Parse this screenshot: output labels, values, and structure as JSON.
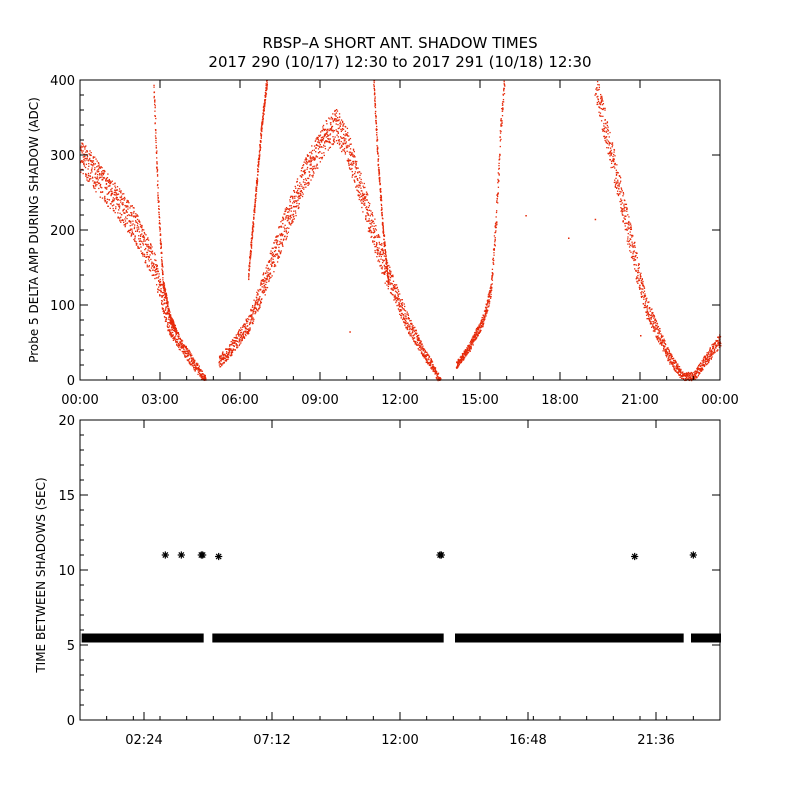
{
  "title_line1": "RBSP–A SHORT ANT. SHADOW TIMES",
  "title_line2": "2017 290 (10/17) 12:30 to 2017 291 (10/18) 12:30",
  "colors": {
    "trace": "#e62a0a",
    "marker": "#000000"
  },
  "chart_data": [
    {
      "type": "scatter",
      "name": "delta-amp",
      "ylabel": "Probe 5 DELTA AMP DURING SHADOW (ADC)",
      "xlabel": "",
      "xlim": [
        0,
        24
      ],
      "ylim": [
        0,
        400
      ],
      "grid": false,
      "xticks": [
        {
          "v": 0,
          "label": "00:00"
        },
        {
          "v": 3,
          "label": "03:00"
        },
        {
          "v": 6,
          "label": "06:00"
        },
        {
          "v": 9,
          "label": "09:00"
        },
        {
          "v": 12,
          "label": "12:00"
        },
        {
          "v": 15,
          "label": "15:00"
        },
        {
          "v": 18,
          "label": "18:00"
        },
        {
          "v": 21,
          "label": "21:00"
        },
        {
          "v": 24,
          "label": "00:00"
        }
      ],
      "yticks": [
        {
          "v": 0,
          "label": "0"
        },
        {
          "v": 100,
          "label": "100"
        },
        {
          "v": 200,
          "label": "200"
        },
        {
          "v": 300,
          "label": "300"
        },
        {
          "v": 400,
          "label": "400"
        }
      ],
      "trend": {
        "x": [
          0.0,
          1.0,
          2.0,
          2.8,
          3.3,
          3.9,
          4.5,
          4.7
        ],
        "y": [
          300,
          255,
          210,
          150,
          75,
          40,
          10,
          0
        ]
      },
      "spike_a": {
        "x": [
          2.75,
          2.9,
          3.1,
          3.35,
          3.6
        ],
        "y": [
          400,
          250,
          130,
          85,
          65
        ]
      },
      "branch_a": {
        "x": [
          5.2,
          5.6,
          6.3,
          6.9,
          7.6,
          8.5,
          9.2,
          9.6,
          10.0,
          10.6,
          11.4,
          12.3,
          13.0,
          13.5
        ],
        "y": [
          25,
          40,
          75,
          130,
          200,
          280,
          325,
          340,
          315,
          245,
          150,
          75,
          30,
          0
        ]
      },
      "spike_b": {
        "x": [
          6.3,
          6.55,
          6.8,
          7.0
        ],
        "y": [
          140,
          240,
          340,
          400
        ]
      },
      "spike_c": {
        "x": [
          11.0,
          11.15,
          11.35,
          11.55
        ],
        "y": [
          400,
          300,
          200,
          130
        ]
      },
      "branch_b": {
        "x": [
          14.1,
          14.6,
          15.1,
          15.4,
          15.6,
          15.75,
          15.9
        ],
        "y": [
          20,
          45,
          80,
          120,
          220,
          330,
          400
        ]
      },
      "branch_c": {
        "x": [
          19.3,
          19.8,
          20.3,
          20.8,
          21.2,
          21.7,
          22.1,
          22.6,
          23.0,
          23.5,
          24.0
        ],
        "y": [
          400,
          320,
          240,
          160,
          100,
          60,
          30,
          5,
          5,
          30,
          55
        ]
      },
      "outliers": {
        "x": [
          10.1,
          16.7,
          18.3,
          19.3,
          21.0
        ],
        "y": [
          65,
          220,
          190,
          215,
          60
        ]
      },
      "spread": 22
    },
    {
      "type": "scatter",
      "name": "time-between-shadows",
      "ylabel": "TIME BETWEEN SHADOWS (SEC)",
      "xlabel": "",
      "xlim": [
        0,
        24
      ],
      "ylim": [
        0,
        20
      ],
      "grid": false,
      "xticks": [
        {
          "v": 2.4,
          "label": "02:24"
        },
        {
          "v": 7.2,
          "label": "07:12"
        },
        {
          "v": 12.0,
          "label": "12:00"
        },
        {
          "v": 16.8,
          "label": "16:48"
        },
        {
          "v": 21.6,
          "label": "21:36"
        }
      ],
      "yticks": [
        {
          "v": 0,
          "label": "0"
        },
        {
          "v": 5,
          "label": "5"
        },
        {
          "v": 10,
          "label": "10"
        },
        {
          "v": 15,
          "label": "15"
        },
        {
          "v": 20,
          "label": "20"
        }
      ],
      "baseline": 5.5,
      "baseline_segments": [
        [
          0.1,
          4.6
        ],
        [
          5.0,
          13.6
        ],
        [
          14.1,
          22.6
        ],
        [
          22.95,
          24.0
        ]
      ],
      "outliers": {
        "x": [
          3.2,
          3.8,
          4.55,
          4.6,
          5.2,
          13.5,
          13.55,
          20.8,
          23.0
        ],
        "y": [
          11,
          11,
          11,
          11,
          10.9,
          11,
          11,
          10.9,
          11
        ]
      }
    }
  ]
}
